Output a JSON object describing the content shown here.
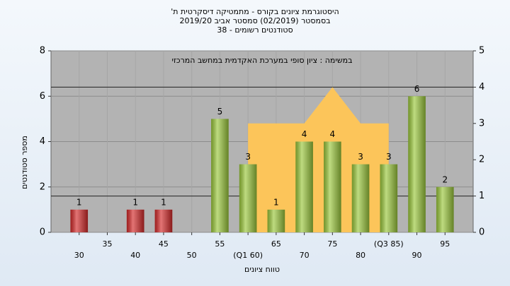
{
  "chart_data": {
    "type": "bar",
    "title": "היסטוגרמת ציונים בקורס - מתמטיקה דיסקרטית ת'",
    "subtitle": [
      "בסמסטר  (02/2019)  סמסטר אביב 2019/20",
      "סטודנטים רשומים - 38"
    ],
    "annotation": "במשימה : ציון סופי במערכת האקדמית במחשב המרכזי",
    "ylabel": "מספר סטודנטים",
    "xlabel": "טווח ציונים",
    "x": [
      30,
      35,
      40,
      45,
      50,
      55,
      60,
      65,
      70,
      75,
      80,
      85,
      90,
      95
    ],
    "values": [
      1,
      0,
      1,
      1,
      0,
      5,
      3,
      1,
      4,
      4,
      3,
      3,
      6,
      2
    ],
    "colors": [
      "#d42a2a",
      "#d42a2a",
      "#d42a2a",
      "#d42a2a",
      "#d42a2a",
      "#9bc83c",
      "#9bc83c",
      "#9bc83c",
      "#9bc83c",
      "#9bc83c",
      "#9bc83c",
      "#9bc83c",
      "#9bc83c",
      "#9bc83c"
    ],
    "xlim": [
      25,
      100
    ],
    "xticks": [
      30,
      35,
      40,
      45,
      50,
      55,
      {
        "value": 60,
        "label": "(Q1 60)"
      },
      65,
      70,
      75,
      80,
      {
        "value": 85,
        "label": "(Q3 85)"
      },
      90,
      95
    ],
    "ylim": [
      0,
      8
    ],
    "yticks": [
      0,
      2,
      4,
      6,
      8
    ],
    "y2lim": [
      0,
      5
    ],
    "y2ticks": [
      0,
      1,
      2,
      3,
      4,
      5
    ],
    "area": {
      "color": "#fcc55a",
      "x": [
        60,
        60,
        70,
        75,
        80,
        85,
        85
      ],
      "y2": [
        0,
        3,
        3,
        4,
        3,
        3,
        0
      ]
    },
    "hlines_y2": [
      4,
      1
    ],
    "grid": true
  }
}
